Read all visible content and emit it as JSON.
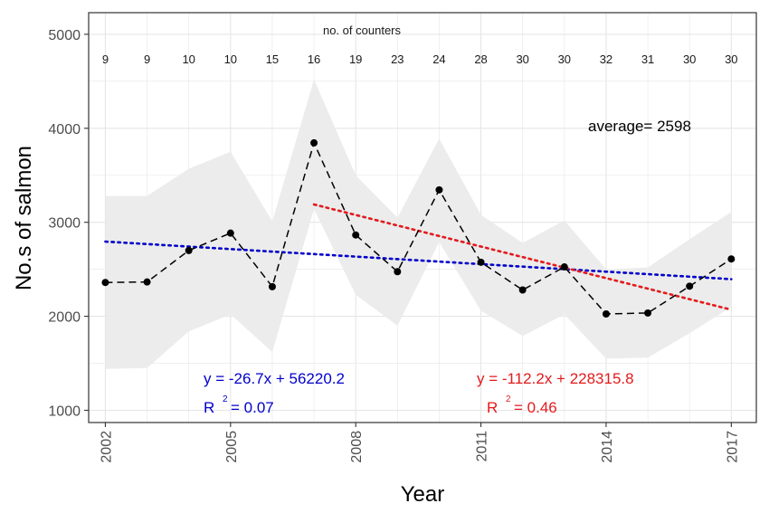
{
  "chart_data": {
    "type": "line",
    "xlabel": "Year",
    "ylabel": "No.s of salmon",
    "xlim": [
      2001.6,
      2017.6
    ],
    "ylim": [
      870,
      5230
    ],
    "x_ticks": [
      2002,
      2005,
      2008,
      2011,
      2014,
      2017
    ],
    "x_tick_labels": [
      "2002",
      "2005",
      "2008",
      "2011",
      "2014",
      "2017"
    ],
    "y_ticks": [
      1000,
      2000,
      3000,
      4000,
      5000
    ],
    "y_tick_labels": [
      "1000",
      "2000",
      "3000",
      "4000",
      "5000"
    ],
    "grid": true,
    "x": [
      2002,
      2003,
      2004,
      2005,
      2006,
      2007,
      2008,
      2009,
      2010,
      2011,
      2012,
      2013,
      2014,
      2015,
      2016,
      2017
    ],
    "series": [
      {
        "values": [
          2360,
          2365,
          2700,
          2885,
          2315,
          3845,
          2865,
          2475,
          3345,
          2575,
          2280,
          2525,
          2025,
          2035,
          2320,
          2610
        ],
        "color": "#000000",
        "style": "dashed-with-points"
      }
    ],
    "confidence_band": {
      "lower": [
        1440,
        1450,
        1840,
        2020,
        1620,
        3140,
        2230,
        1900,
        2790,
        2060,
        1790,
        2020,
        1550,
        1560,
        1820,
        2100
      ],
      "upper": [
        3280,
        3280,
        3570,
        3750,
        3010,
        4520,
        3500,
        3050,
        3890,
        3080,
        2780,
        3020,
        2500,
        2520,
        2820,
        3110
      ],
      "color": "#ebebeb"
    },
    "trend_lines": [
      {
        "color": "#0000cc",
        "x_start": 2002,
        "y_start": 2795,
        "x_end": 2017,
        "y_end": 2395,
        "style": "dotted"
      },
      {
        "color": "#e41a1c",
        "x_start": 2007,
        "y_start": 3190,
        "x_end": 2017,
        "y_end": 2070,
        "style": "dotted"
      }
    ],
    "counters_title": "no. of counters",
    "counters": [
      "9",
      "9",
      "10",
      "10",
      "15",
      "16",
      "19",
      "23",
      "24",
      "28",
      "30",
      "30",
      "32",
      "31",
      "30",
      "30"
    ],
    "annotations": {
      "average": "average= 2598",
      "blue_eq": "y = -26.7x + 56220.2",
      "blue_r2_prefix": "R",
      "blue_r2_sup": "2",
      "blue_r2_value": "= 0.07",
      "red_eq": "y = -112.2x + 228315.8",
      "red_r2_prefix": "R",
      "red_r2_sup": "2",
      "red_r2_value": "= 0.46"
    },
    "colors": {
      "panel_border": "#333333",
      "grid": "#e6e6e6",
      "blue": "#0000cc",
      "red": "#e41a1c"
    }
  }
}
